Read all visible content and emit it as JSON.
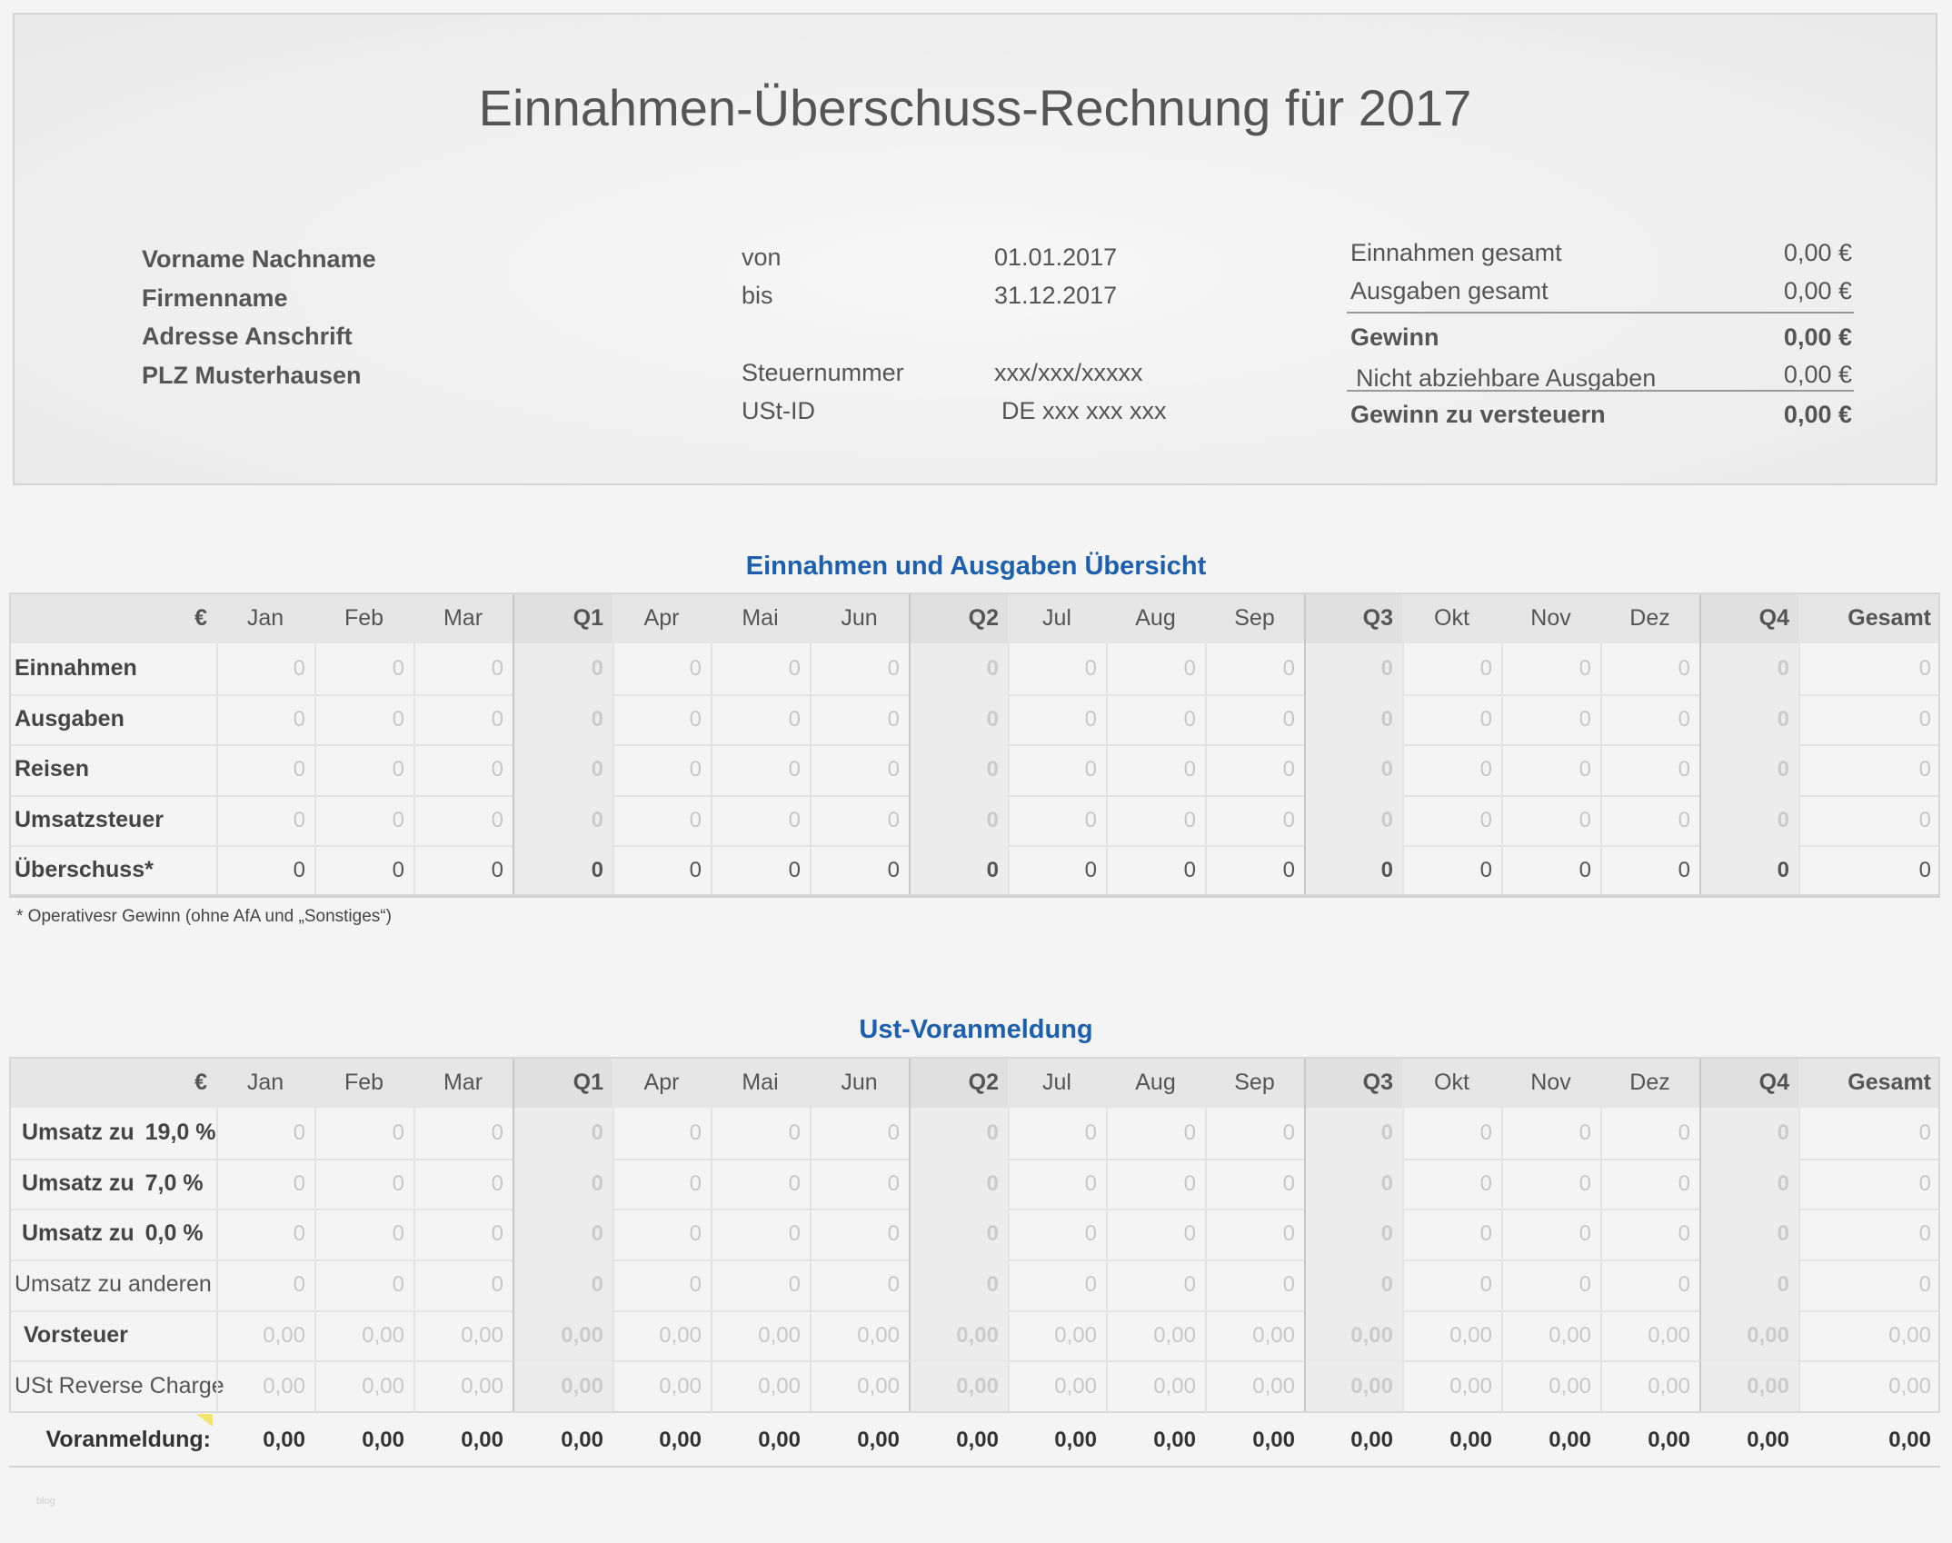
{
  "header": {
    "title": "Einnahmen-Überschuss-Rechnung für 2017",
    "person": [
      "Vorname Nachname",
      "Firmenname",
      "Adresse Anschrift",
      "PLZ Musterhausen"
    ],
    "von_label": "von",
    "von_value": "01.01.2017",
    "bis_label": "bis",
    "bis_value": "31.12.2017",
    "steuer_label": "Steuernummer",
    "steuer_value": "xxx/xxx/xxxxx",
    "ust_label": "USt-ID",
    "ust_value": "DE xxx xxx xxx",
    "summary": [
      {
        "label": "Einnahmen gesamt",
        "value": "0,00 €"
      },
      {
        "label": "Ausgaben gesamt",
        "value": "0,00 €"
      },
      {
        "label": "Gewinn",
        "value": "0,00 €"
      },
      {
        "label": "Nicht abziehbare Ausgaben",
        "value": "0,00 €"
      },
      {
        "label": "Gewinn zu versteuern",
        "value": "0,00 €"
      }
    ]
  },
  "columns": [
    "Jan",
    "Feb",
    "Mar",
    "Q1",
    "Apr",
    "Mai",
    "Jun",
    "Q2",
    "Jul",
    "Aug",
    "Sep",
    "Q3",
    "Okt",
    "Nov",
    "Dez",
    "Q4",
    "Gesamt"
  ],
  "currency": "€",
  "overview": {
    "title": "Einnahmen und Ausgaben Übersicht",
    "rows": [
      {
        "label": "Einnahmen",
        "values": [
          "0",
          "0",
          "0",
          "0",
          "0",
          "0",
          "0",
          "0",
          "0",
          "0",
          "0",
          "0",
          "0",
          "0",
          "0",
          "0",
          "0"
        ]
      },
      {
        "label": "Ausgaben",
        "values": [
          "0",
          "0",
          "0",
          "0",
          "0",
          "0",
          "0",
          "0",
          "0",
          "0",
          "0",
          "0",
          "0",
          "0",
          "0",
          "0",
          "0"
        ]
      },
      {
        "label": "Reisen",
        "values": [
          "0",
          "0",
          "0",
          "0",
          "0",
          "0",
          "0",
          "0",
          "0",
          "0",
          "0",
          "0",
          "0",
          "0",
          "0",
          "0",
          "0"
        ]
      },
      {
        "label": "Umsatzsteuer",
        "values": [
          "0",
          "0",
          "0",
          "0",
          "0",
          "0",
          "0",
          "0",
          "0",
          "0",
          "0",
          "0",
          "0",
          "0",
          "0",
          "0",
          "0"
        ]
      },
      {
        "label": "Überschuss*",
        "values": [
          "0",
          "0",
          "0",
          "0",
          "0",
          "0",
          "0",
          "0",
          "0",
          "0",
          "0",
          "0",
          "0",
          "0",
          "0",
          "0",
          "0"
        ]
      }
    ],
    "footnote": "* Operativesr Gewinn (ohne AfA und „Sonstiges“)"
  },
  "ust": {
    "title": "Ust-Voranmeldung",
    "rows": [
      {
        "label": "Umsatz zu",
        "rate": "19,0 %",
        "values": [
          "0",
          "0",
          "0",
          "0",
          "0",
          "0",
          "0",
          "0",
          "0",
          "0",
          "0",
          "0",
          "0",
          "0",
          "0",
          "0",
          "0"
        ]
      },
      {
        "label": "Umsatz zu",
        "rate": "7,0 %",
        "values": [
          "0",
          "0",
          "0",
          "0",
          "0",
          "0",
          "0",
          "0",
          "0",
          "0",
          "0",
          "0",
          "0",
          "0",
          "0",
          "0",
          "0"
        ]
      },
      {
        "label": "Umsatz zu",
        "rate": "0,0 %",
        "values": [
          "0",
          "0",
          "0",
          "0",
          "0",
          "0",
          "0",
          "0",
          "0",
          "0",
          "0",
          "0",
          "0",
          "0",
          "0",
          "0",
          "0"
        ]
      },
      {
        "label": "Umsatz zu anderen",
        "rate": "",
        "values": [
          "0",
          "0",
          "0",
          "0",
          "0",
          "0",
          "0",
          "0",
          "0",
          "0",
          "0",
          "0",
          "0",
          "0",
          "0",
          "0",
          "0"
        ]
      },
      {
        "label": "Vorsteuer",
        "rate": "",
        "values": [
          "0,00",
          "0,00",
          "0,00",
          "0,00",
          "0,00",
          "0,00",
          "0,00",
          "0,00",
          "0,00",
          "0,00",
          "0,00",
          "0,00",
          "0,00",
          "0,00",
          "0,00",
          "0,00",
          "0,00"
        ]
      },
      {
        "label": "USt Reverse Charge",
        "rate": "",
        "values": [
          "0,00",
          "0,00",
          "0,00",
          "0,00",
          "0,00",
          "0,00",
          "0,00",
          "0,00",
          "0,00",
          "0,00",
          "0,00",
          "0,00",
          "0,00",
          "0,00",
          "0,00",
          "0,00",
          "0,00"
        ]
      }
    ],
    "total": {
      "label": "Voranmeldung:",
      "values": [
        "0,00",
        "0,00",
        "0,00",
        "0,00",
        "0,00",
        "0,00",
        "0,00",
        "0,00",
        "0,00",
        "0,00",
        "0,00",
        "0,00",
        "0,00",
        "0,00",
        "0,00",
        "0,00",
        "0,00"
      ]
    }
  },
  "watermark": "blog"
}
